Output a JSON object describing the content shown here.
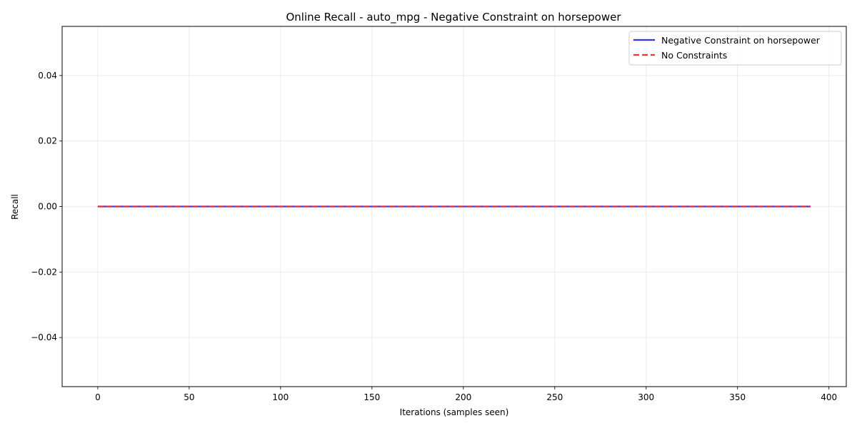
{
  "chart_data": {
    "type": "line",
    "title": "Online Recall - auto_mpg - Negative Constraint on horsepower",
    "xlabel": "Iterations (samples seen)",
    "ylabel": "Recall",
    "xlim": [
      -19.5,
      409.5
    ],
    "ylim": [
      -0.055,
      0.055
    ],
    "xticks": [
      0,
      50,
      100,
      150,
      200,
      250,
      300,
      350,
      400
    ],
    "xtick_labels": [
      "0",
      "50",
      "100",
      "150",
      "200",
      "250",
      "300",
      "350",
      "400"
    ],
    "yticks": [
      -0.04,
      -0.02,
      0.0,
      0.02,
      0.04
    ],
    "ytick_labels": [
      "−0.04",
      "−0.02",
      "0.00",
      "0.02",
      "0.04"
    ],
    "grid": true,
    "legend_position": "top-right",
    "series": [
      {
        "name": "Negative Constraint on horsepower",
        "color": "#3333e6",
        "style": "solid",
        "x": [
          0,
          390
        ],
        "y": [
          0.0,
          0.0
        ]
      },
      {
        "name": "No Constraints",
        "color": "#ee3333",
        "style": "dashed",
        "x": [
          0,
          390
        ],
        "y": [
          0.0,
          0.0
        ]
      }
    ]
  }
}
